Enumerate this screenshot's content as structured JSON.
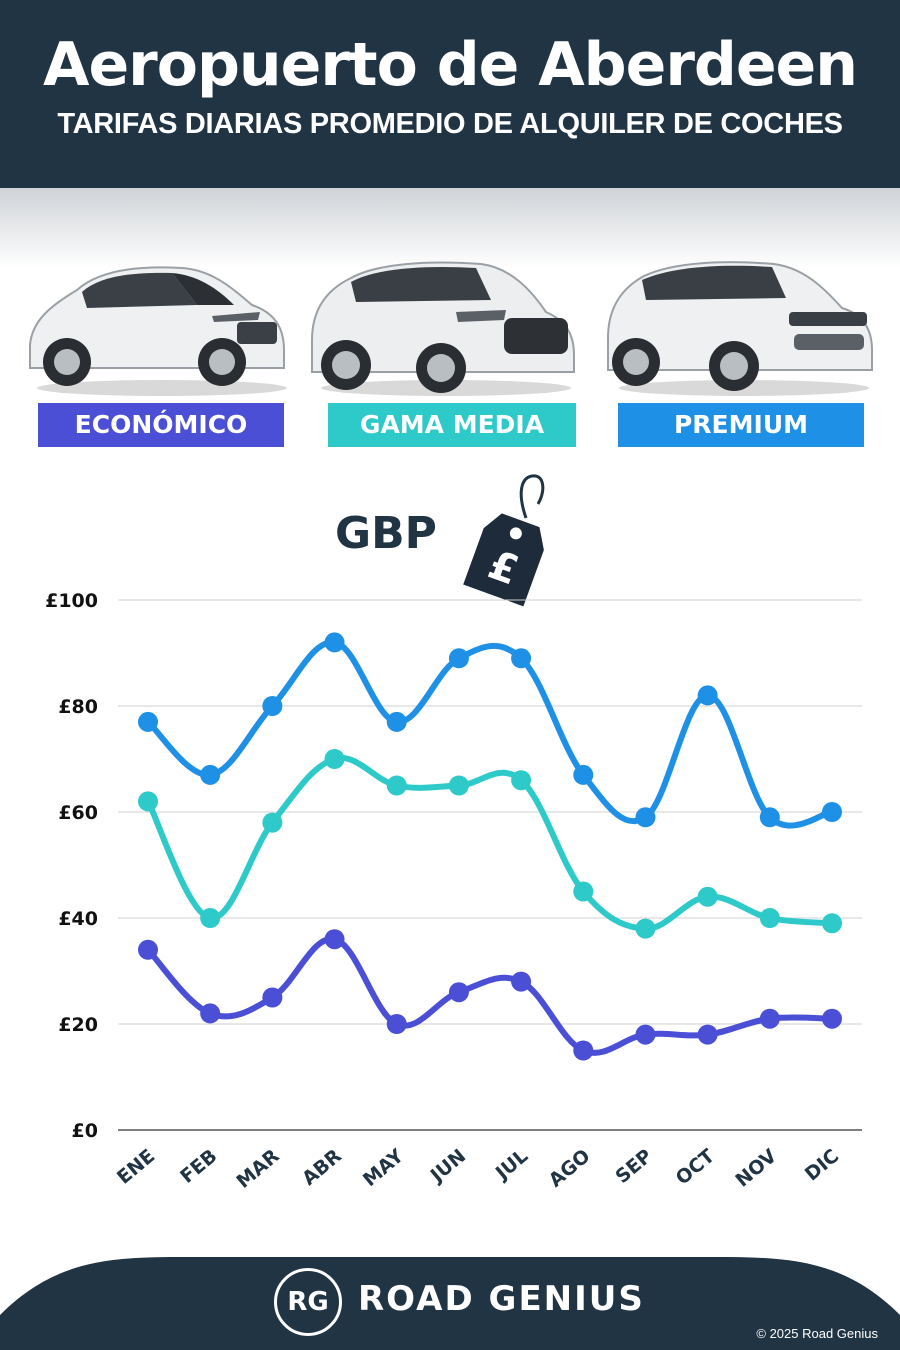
{
  "header": {
    "title": "Aeropuerto de Aberdeen",
    "subtitle": "TARIFAS DIARIAS PROMEDIO DE ALQUILER DE COCHES"
  },
  "categories": [
    {
      "label": "ECONÓMICO",
      "color": "#4a4fd6",
      "car_icon": "hatchback-car-icon"
    },
    {
      "label": "GAMA MEDIA",
      "color": "#2ec9c9",
      "car_icon": "suv-car-icon"
    },
    {
      "label": "PREMIUM",
      "color": "#1e90e6",
      "car_icon": "luxury-suv-car-icon"
    }
  ],
  "currency": {
    "label": "GBP",
    "symbol": "£",
    "icon": "price-tag-icon"
  },
  "chart_data": {
    "type": "line",
    "categories": [
      "ENE",
      "FEB",
      "MAR",
      "ABR",
      "MAY",
      "JUN",
      "JUL",
      "AGO",
      "SEP",
      "OCT",
      "NOV",
      "DIC"
    ],
    "series": [
      {
        "name": "PREMIUM",
        "color": "#1e90e6",
        "values": [
          77,
          67,
          80,
          92,
          77,
          89,
          89,
          67,
          59,
          82,
          59,
          60
        ]
      },
      {
        "name": "GAMA MEDIA",
        "color": "#2ec9c9",
        "values": [
          62,
          40,
          58,
          70,
          65,
          65,
          66,
          45,
          38,
          44,
          40,
          39
        ]
      },
      {
        "name": "ECONÓMICO",
        "color": "#4a4fd6",
        "values": [
          34,
          22,
          25,
          36,
          20,
          26,
          28,
          15,
          18,
          18,
          21,
          21
        ]
      }
    ],
    "yticks": [
      "£0",
      "£20",
      "£40",
      "£60",
      "£80",
      "£100"
    ],
    "ylim": [
      0,
      100
    ],
    "grid": true
  },
  "footer": {
    "logo_text": "RG",
    "brand": "ROAD GENIUS",
    "copyright": "© 2025 Road Genius",
    "bg_color": "#213444"
  }
}
